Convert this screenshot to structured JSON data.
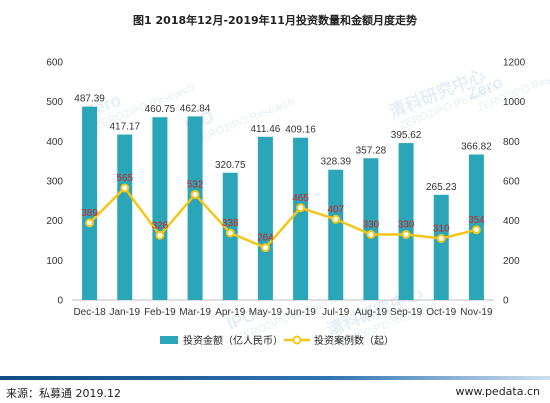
{
  "page": {
    "footer_source": "来源：私募通 2019.12",
    "footer_url": "www.pedata.cn",
    "watermarks": [
      "Zero",
      "IPO",
      "清科研究中心",
      "ZERO2IPO Research"
    ]
  },
  "chart_data": {
    "type": "bar",
    "title": "图1  2018年12月-2019年11月投资数量和金额月度走势",
    "categories": [
      "Dec-18",
      "Jan-19",
      "Feb-19",
      "Mar-19",
      "Apr-19",
      "May-19",
      "Jun-19",
      "Jul-19",
      "Aug-19",
      "Sep-19",
      "Oct-19",
      "Nov-19"
    ],
    "series": [
      {
        "name": "投资金额（亿人民币）",
        "type": "bar",
        "axis": "left",
        "color": "#2aa6b8",
        "values": [
          487.39,
          417.17,
          460.75,
          462.84,
          320.75,
          411.46,
          409.16,
          328.39,
          357.28,
          395.62,
          265.23,
          366.82
        ]
      },
      {
        "name": "投资案例数（起）",
        "type": "line",
        "axis": "right",
        "color": "#f5c518",
        "label_color": "#d21f1f",
        "values": [
          389,
          565,
          326,
          532,
          338,
          264,
          465,
          407,
          330,
          330,
          310,
          354
        ]
      }
    ],
    "y_left": {
      "min": 0,
      "max": 600,
      "ticks": [
        0,
        100,
        200,
        300,
        400,
        500,
        600
      ]
    },
    "y_right": {
      "min": 0,
      "max": 1200,
      "ticks": [
        0,
        200,
        400,
        600,
        800,
        1000,
        1200
      ]
    },
    "legend_position": "bottom",
    "grid": false
  }
}
